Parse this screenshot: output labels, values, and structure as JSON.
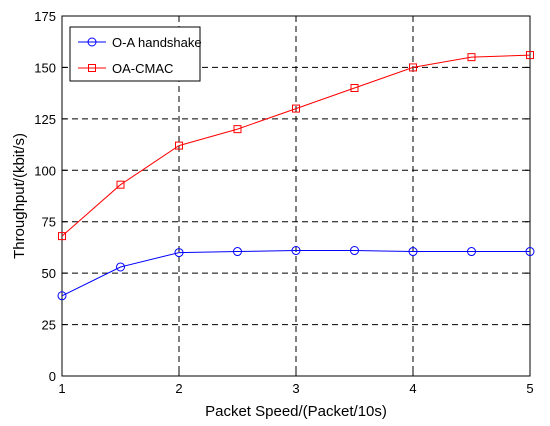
{
  "chart_data": {
    "type": "line",
    "title": "",
    "xlabel": "Packet Speed/(Packet/10s)",
    "ylabel": "Throughput/(kbit/s)",
    "xlim": [
      1,
      5
    ],
    "ylim": [
      0,
      175
    ],
    "x_ticks": [
      "1",
      "2",
      "3",
      "4",
      "5"
    ],
    "y_ticks": [
      "0",
      "25",
      "50",
      "75",
      "100",
      "125",
      "150",
      "175"
    ],
    "grid": true,
    "grid_style": "dashed",
    "legend_position": "top-left",
    "x": [
      1,
      1.5,
      2,
      2.5,
      3,
      3.5,
      4,
      4.5,
      5
    ],
    "series": [
      {
        "name": "O-A handshake",
        "color": "#0000ff",
        "marker": "circle",
        "values": [
          39,
          53,
          60,
          60.5,
          61,
          61,
          60.5,
          60.5,
          60.5
        ]
      },
      {
        "name": "OA-CMAC",
        "color": "#ff0000",
        "marker": "square",
        "values": [
          68,
          93,
          112,
          120,
          130,
          140,
          150,
          155,
          156
        ]
      }
    ]
  }
}
